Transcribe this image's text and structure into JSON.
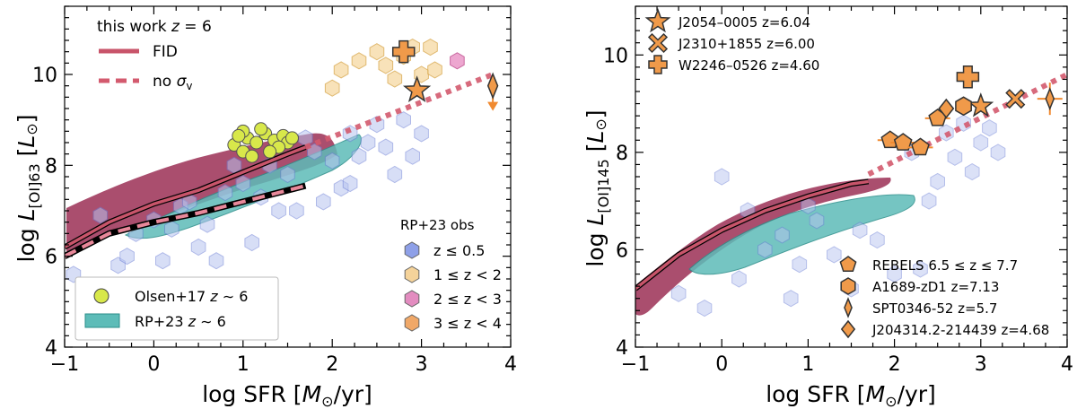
{
  "chart_data": [
    {
      "type": "scatter",
      "panel": "left",
      "xlabel": "log SFR [M_⊙/yr]",
      "ylabel": "log L_[OI]63 [L_⊙]",
      "xlim": [
        -1,
        4
      ],
      "ylim": [
        4,
        11.5
      ],
      "xticks": [
        "−1",
        "0",
        "1",
        "2",
        "3",
        "4"
      ],
      "yticks": [
        "4",
        "6",
        "8",
        "10"
      ],
      "legend_title": "this work z = 6",
      "legend_lines": [
        {
          "label": "FID",
          "style": "solid",
          "color": "#c8546a"
        },
        {
          "label": "no σ_v",
          "style": "dashed",
          "color": "#d35a6e"
        }
      ],
      "obs_title": "RP+23 obs",
      "obs_legend": [
        {
          "label": "z ≤ 0.5",
          "color": "#8ea0e8"
        },
        {
          "label": "1 ≤ z < 2",
          "color": "#f5d39a"
        },
        {
          "label": "2 ≤ z < 3",
          "color": "#e38cc0"
        },
        {
          "label": "3 ≤ z < 4",
          "color": "#f0a868"
        }
      ],
      "legend_bottom": [
        {
          "label": "Olsen+17 z ~ 6",
          "color": "#d8e84a"
        },
        {
          "label": "RP+23 z ~ 6",
          "color": "#5dbcb8"
        }
      ],
      "fid_line": {
        "x": [
          -1.0,
          -0.5,
          0.0,
          0.5,
          1.0,
          1.5,
          1.7
        ],
        "y": [
          6.2,
          6.75,
          7.15,
          7.45,
          7.85,
          8.25,
          8.4
        ]
      },
      "no_sigma_line": {
        "x": [
          -1.0,
          -0.5,
          0.0,
          0.5,
          1.0,
          1.5,
          1.7
        ],
        "y": [
          6.0,
          6.5,
          6.75,
          6.95,
          7.2,
          7.45,
          7.55
        ]
      },
      "trend_dotted": {
        "x": [
          1.7,
          3.8
        ],
        "y": [
          8.4,
          10.0
        ]
      },
      "olsen_points": {
        "x": [
          0.9,
          1.0,
          1.05,
          1.15,
          1.25,
          1.35,
          1.45,
          1.5,
          1.55,
          1.0,
          1.2,
          1.4,
          1.3,
          1.1,
          0.95
        ],
        "y": [
          8.45,
          8.3,
          8.6,
          8.5,
          8.7,
          8.55,
          8.65,
          8.5,
          8.6,
          8.75,
          8.8,
          8.4,
          8.3,
          8.2,
          8.65
        ]
      },
      "hex_z05": {
        "x": [
          -0.9,
          -0.7,
          -0.4,
          -0.2,
          0.0,
          0.2,
          0.3,
          0.5,
          0.7,
          0.8,
          1.0,
          1.2,
          1.3,
          1.5,
          1.6,
          1.8,
          2.0,
          2.1,
          2.2,
          2.4,
          2.5,
          2.6,
          2.8,
          3.0,
          -0.6,
          0.4,
          1.1,
          1.9,
          2.3,
          2.7,
          0.1,
          0.6,
          1.4,
          2.2,
          -0.3,
          0.9,
          1.7,
          2.9
        ],
        "y": [
          5.6,
          5.3,
          5.8,
          6.5,
          6.8,
          6.6,
          7.1,
          6.2,
          5.9,
          7.4,
          7.6,
          7.3,
          8.0,
          7.8,
          7.0,
          8.3,
          8.1,
          7.5,
          8.7,
          8.5,
          8.9,
          8.4,
          9.0,
          8.7,
          6.9,
          7.2,
          6.3,
          7.2,
          8.2,
          7.8,
          5.9,
          6.7,
          7.0,
          7.6,
          6.0,
          8.0,
          8.6,
          8.2
        ]
      },
      "hex_z12": {
        "x": [
          2.0,
          2.1,
          2.3,
          2.5,
          2.6,
          2.7,
          2.8,
          2.9,
          3.0,
          3.1,
          3.15
        ],
        "y": [
          9.7,
          10.1,
          10.3,
          10.5,
          10.2,
          9.9,
          10.4,
          10.6,
          10.0,
          10.6,
          10.1
        ]
      },
      "hex_z23": {
        "x": [
          3.4
        ],
        "y": [
          10.3
        ]
      },
      "markers": [
        {
          "name": "J2054-0005",
          "shape": "star",
          "x": 2.95,
          "y": 9.65
        },
        {
          "name": "W2246-0526",
          "shape": "plus",
          "x": 2.8,
          "y": 10.5
        },
        {
          "name": "SPT0346-52",
          "shape": "diamond",
          "x": 3.8,
          "y": 9.75
        }
      ]
    },
    {
      "type": "scatter",
      "panel": "right",
      "xlabel": "log SFR [M_⊙/yr]",
      "ylabel": "log L_[OI]145 [L_⊙]",
      "xlim": [
        -1,
        4
      ],
      "ylim": [
        4,
        11
      ],
      "xticks": [
        "−1",
        "0",
        "1",
        "2",
        "3",
        "4"
      ],
      "yticks": [
        "4",
        "6",
        "8",
        "10"
      ],
      "legend_top": [
        {
          "label": "J2054–0005 z=6.04",
          "shape": "star"
        },
        {
          "label": "J2310+1855 z=6.00",
          "shape": "cross"
        },
        {
          "label": "W2246–0526 z=4.60",
          "shape": "plus"
        }
      ],
      "legend_bottom": [
        {
          "label": "REBELS 6.5 ≤ z ≤ 7.7",
          "shape": "pentagon"
        },
        {
          "label": "A1689-zD1 z=7.13",
          "shape": "hexagon"
        },
        {
          "label": "SPT0346-52 z=5.7",
          "shape": "thin-diamond"
        },
        {
          "label": "J204314.2-214439 z=4.68",
          "shape": "diamond"
        }
      ],
      "fid_line": {
        "x": [
          -1.0,
          -0.5,
          0.0,
          0.5,
          1.0,
          1.5,
          1.7
        ],
        "y": [
          5.2,
          5.9,
          6.4,
          6.8,
          7.1,
          7.35,
          7.4
        ]
      },
      "trend_dotted": {
        "x": [
          1.7,
          4.0
        ],
        "y": [
          7.55,
          9.6
        ]
      },
      "hex_z05": {
        "x": [
          0.0,
          0.3,
          0.5,
          0.7,
          0.9,
          1.1,
          1.3,
          1.5,
          1.8,
          2.0,
          2.2,
          2.4,
          2.6,
          2.7,
          2.9,
          3.0,
          3.1,
          3.2,
          0.2,
          0.8,
          1.0,
          1.6,
          2.5,
          2.8,
          -0.5,
          -0.2,
          2.3
        ],
        "y": [
          7.5,
          6.8,
          6.0,
          6.3,
          5.7,
          6.6,
          5.9,
          5.2,
          6.2,
          5.5,
          8.0,
          7.0,
          8.4,
          7.9,
          7.6,
          8.2,
          8.5,
          8.0,
          5.4,
          5.0,
          6.9,
          6.4,
          7.4,
          8.6,
          5.1,
          4.8,
          5.6
        ]
      },
      "markers": [
        {
          "name": "J2054-0005",
          "shape": "star",
          "x": 3.0,
          "y": 8.95
        },
        {
          "name": "J2310+1855",
          "shape": "cross",
          "x": 3.4,
          "y": 9.1
        },
        {
          "name": "W2246-0526",
          "shape": "plus",
          "x": 2.85,
          "y": 9.55
        },
        {
          "name": "REBELS",
          "shape": "pentagon",
          "x": 1.95,
          "y": 8.25
        },
        {
          "name": "REBELS",
          "shape": "pentagon",
          "x": 2.1,
          "y": 8.2
        },
        {
          "name": "REBELS",
          "shape": "pentagon",
          "x": 2.3,
          "y": 8.1
        },
        {
          "name": "REBELS",
          "shape": "pentagon",
          "x": 2.5,
          "y": 8.7
        },
        {
          "name": "A1689-zD1",
          "shape": "hexagon",
          "x": 2.8,
          "y": 8.95
        },
        {
          "name": "SPT0346-52",
          "shape": "thin-diamond",
          "x": 3.8,
          "y": 9.1
        },
        {
          "name": "J204314.2-214439",
          "shape": "diamond",
          "x": 2.6,
          "y": 8.9
        }
      ]
    }
  ]
}
